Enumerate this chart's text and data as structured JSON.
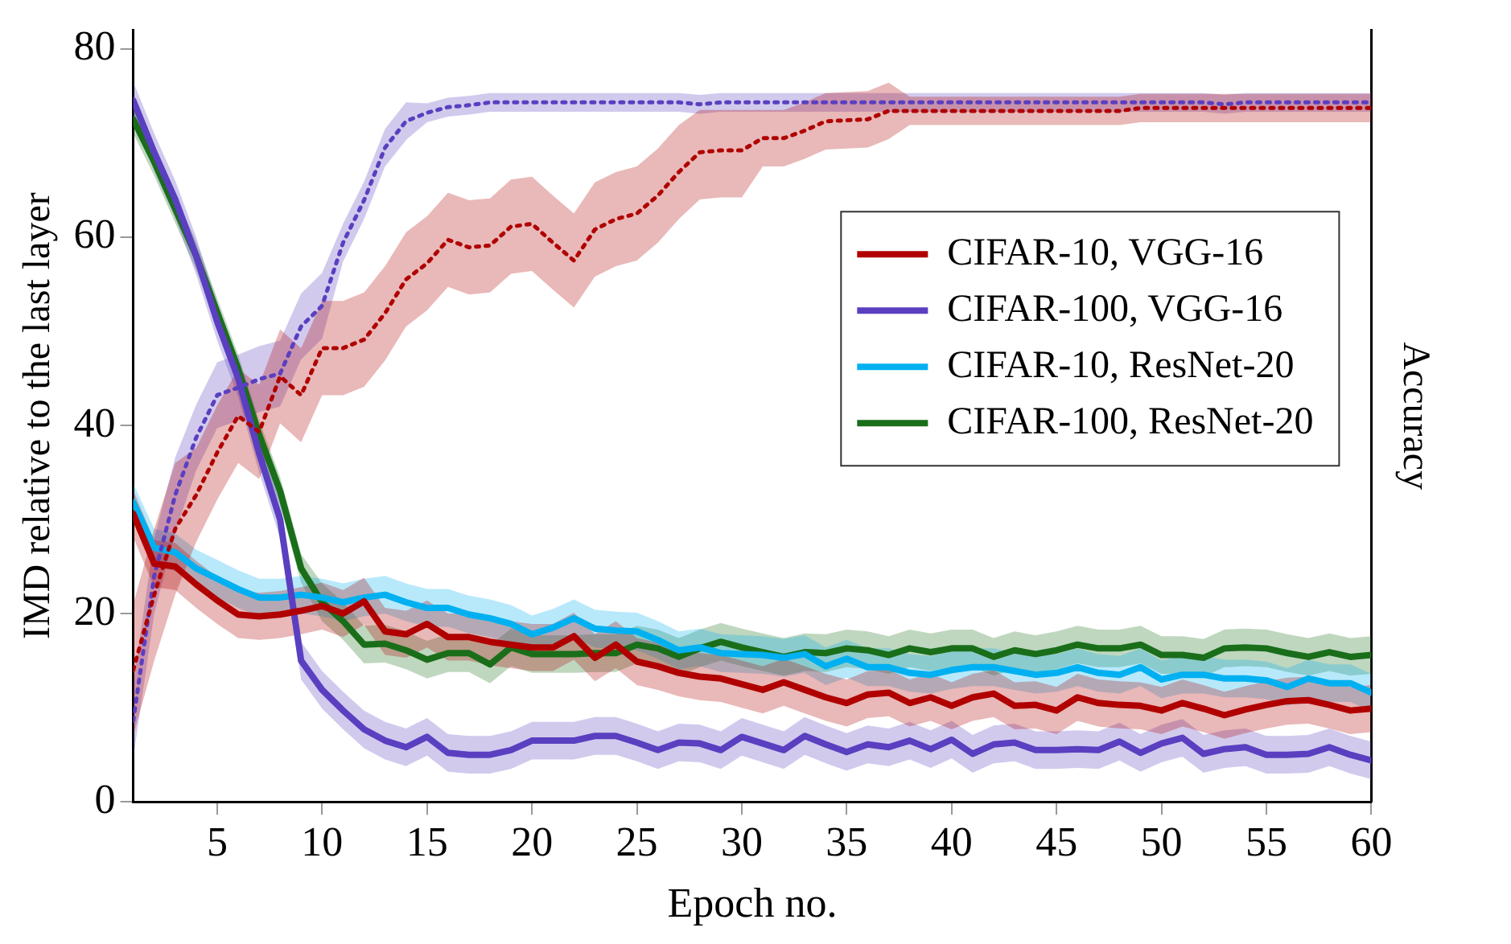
{
  "chart_data": {
    "type": "line",
    "xlabel": "Epoch no.",
    "ylabel": "IMD relative to the last layer",
    "y2label": "Accuracy",
    "xlim": [
      1,
      60
    ],
    "xticks": [
      5,
      10,
      15,
      20,
      25,
      30,
      35,
      40,
      45,
      50,
      55,
      60
    ],
    "ylim": [
      0,
      82
    ],
    "yticks": [
      0,
      20,
      40,
      60,
      80
    ],
    "grid": false,
    "legend": "right",
    "marker": "none",
    "x": [
      1,
      2,
      3,
      4,
      5,
      6,
      7,
      8,
      9,
      10,
      11,
      12,
      13,
      14,
      15,
      16,
      17,
      18,
      19,
      20,
      21,
      22,
      23,
      24,
      25,
      26,
      27,
      28,
      29,
      30,
      31,
      32,
      33,
      34,
      35,
      36,
      37,
      38,
      39,
      40,
      41,
      42,
      43,
      44,
      45,
      46,
      47,
      48,
      49,
      50,
      51,
      52,
      53,
      54,
      55,
      56,
      57,
      58,
      59,
      60
    ],
    "series": [
      {
        "name": "CIFAR-10, VGG-16",
        "color": "#b00000",
        "line_style": "solid",
        "values": [
          30.6,
          25.3,
          25.0,
          23.1,
          21.4,
          19.9,
          19.7,
          19.9,
          20.3,
          20.8,
          20.0,
          21.3,
          18.1,
          17.8,
          18.9,
          17.5,
          17.5,
          17.0,
          16.7,
          16.4,
          16.4,
          17.6,
          15.3,
          16.7,
          14.9,
          14.4,
          13.7,
          13.3,
          13.1,
          12.5,
          11.9,
          12.7,
          11.9,
          11.1,
          10.5,
          11.4,
          11.6,
          10.5,
          11.1,
          10.2,
          11.1,
          11.5,
          10.2,
          10.3,
          9.7,
          11.1,
          10.5,
          10.3,
          10.2,
          9.7,
          10.5,
          9.9,
          9.2,
          9.8,
          10.3,
          10.7,
          10.8,
          10.3,
          9.7,
          9.9
        ],
        "lower": [
          28.1,
          22.8,
          22.5,
          20.6,
          18.9,
          17.4,
          17.2,
          17.4,
          17.8,
          18.3,
          17.5,
          18.8,
          15.6,
          15.3,
          16.4,
          15.0,
          15.0,
          14.5,
          14.2,
          13.9,
          13.9,
          15.1,
          12.8,
          14.2,
          12.4,
          11.9,
          11.2,
          10.8,
          10.6,
          10.0,
          9.4,
          10.2,
          9.4,
          8.6,
          8.0,
          8.9,
          9.1,
          8.0,
          8.6,
          7.7,
          8.6,
          9.0,
          7.7,
          7.8,
          7.2,
          8.6,
          8.0,
          7.8,
          7.7,
          7.2,
          8.0,
          7.4,
          6.7,
          7.3,
          7.8,
          8.2,
          8.3,
          7.8,
          7.2,
          7.4
        ],
        "upper": [
          33.1,
          27.8,
          27.5,
          25.6,
          23.9,
          22.4,
          22.2,
          22.4,
          22.8,
          23.3,
          22.5,
          23.8,
          20.6,
          20.3,
          21.4,
          20.0,
          20.0,
          19.5,
          19.2,
          18.9,
          18.9,
          20.1,
          17.8,
          19.2,
          17.4,
          16.9,
          16.2,
          15.8,
          15.6,
          15.0,
          14.4,
          15.2,
          14.4,
          13.6,
          13.0,
          13.9,
          14.1,
          13.0,
          13.6,
          12.7,
          13.6,
          14.0,
          12.7,
          12.8,
          12.2,
          13.6,
          13.0,
          12.8,
          12.7,
          12.2,
          13.0,
          12.4,
          11.7,
          12.3,
          12.8,
          13.2,
          13.3,
          12.8,
          12.2,
          12.4
        ]
      },
      {
        "color": "#b00000",
        "line_style": "dotted",
        "values": [
          14,
          22,
          29,
          32.6,
          37.1,
          41.0,
          39.3,
          45.2,
          43.2,
          48.2,
          48.2,
          49.1,
          51.9,
          55.5,
          57.2,
          59.7,
          58.9,
          59.1,
          61.1,
          61.4,
          59.4,
          57.5,
          60.8,
          61.9,
          62.5,
          64.4,
          66.9,
          69.0,
          69.2,
          69.2,
          70.5,
          70.5,
          71.3,
          72.3,
          72.4,
          72.5,
          73.4,
          73.4,
          73.4,
          73.4,
          73.4,
          73.4,
          73.4,
          73.4,
          73.4,
          73.4,
          73.4,
          73.4,
          73.7,
          73.7,
          73.7,
          73.7,
          73.7,
          73.7,
          73.7,
          73.7,
          73.7,
          73.7,
          73.7,
          73.7
        ],
        "lower": [
          7,
          15,
          22,
          27.6,
          32.1,
          36.0,
          34.3,
          40.2,
          38.2,
          43.2,
          43.2,
          44.1,
          46.9,
          50.5,
          52.2,
          54.7,
          53.9,
          54.1,
          56.1,
          56.4,
          54.4,
          52.5,
          55.8,
          56.9,
          57.5,
          59.4,
          61.9,
          64.0,
          64.2,
          64.2,
          67.5,
          67.5,
          68.3,
          69.3,
          69.4,
          69.5,
          70.4,
          71.9,
          71.9,
          71.9,
          71.9,
          71.9,
          71.9,
          71.9,
          71.9,
          71.9,
          71.9,
          71.9,
          72.2,
          72.2,
          72.2,
          72.2,
          72.2,
          72.2,
          72.2,
          72.2,
          72.2,
          72.2,
          72.2,
          72.2
        ],
        "upper": [
          21,
          29,
          36,
          37.6,
          42.1,
          46.0,
          44.3,
          50.2,
          48.2,
          53.2,
          53.2,
          54.1,
          56.9,
          60.5,
          62.2,
          64.7,
          63.9,
          64.1,
          66.1,
          66.4,
          64.4,
          62.5,
          65.8,
          66.9,
          67.5,
          69.4,
          71.9,
          73.5,
          73.5,
          73.5,
          73.5,
          73.5,
          74.3,
          75.3,
          75.4,
          75.5,
          76.4,
          74.9,
          74.9,
          74.9,
          74.9,
          74.9,
          74.9,
          74.9,
          74.9,
          74.9,
          74.9,
          74.9,
          75.2,
          75.2,
          75.2,
          75.2,
          75.2,
          75.2,
          75.2,
          75.2,
          75.2,
          75.2,
          75.2,
          75.2
        ]
      },
      {
        "name": "CIFAR-100, VGG-16",
        "color": "#5a3fc0",
        "line_style": "solid",
        "values": [
          74.5,
          69,
          64,
          58,
          51,
          45,
          37,
          30,
          15,
          11.9,
          9.7,
          7.7,
          6.5,
          5.8,
          6.9,
          5.2,
          5.0,
          5.0,
          5.5,
          6.5,
          6.5,
          6.5,
          7.0,
          7.0,
          6.3,
          5.5,
          6.3,
          6.2,
          5.5,
          6.9,
          6.2,
          5.5,
          7.0,
          6.1,
          5.3,
          6.1,
          5.8,
          6.5,
          5.6,
          6.6,
          5.1,
          6.1,
          6.3,
          5.5,
          5.5,
          5.6,
          5.5,
          6.4,
          5.2,
          6.2,
          6.8,
          5.1,
          5.6,
          5.8,
          5.0,
          5.0,
          5.1,
          5.8,
          5.0,
          4.4
        ],
        "lower": [
          72.5,
          67,
          62,
          56,
          49,
          43,
          35,
          28,
          13,
          9.9,
          7.7,
          5.7,
          4.5,
          3.8,
          4.9,
          3.2,
          3.0,
          3.0,
          3.5,
          4.5,
          4.5,
          4.5,
          5.0,
          5.0,
          4.3,
          3.5,
          4.3,
          4.2,
          3.5,
          4.9,
          4.2,
          3.5,
          5.0,
          4.1,
          3.3,
          4.1,
          3.8,
          4.5,
          3.6,
          4.6,
          3.1,
          4.1,
          4.3,
          3.5,
          3.5,
          3.6,
          3.5,
          4.4,
          3.2,
          4.2,
          4.8,
          3.1,
          3.6,
          3.8,
          3.0,
          3.0,
          3.1,
          3.8,
          3.0,
          2.4
        ],
        "upper": [
          76.5,
          71,
          66,
          60,
          53,
          47,
          39,
          32,
          17,
          13.9,
          11.7,
          9.7,
          8.5,
          7.8,
          8.9,
          7.2,
          7.0,
          7.0,
          7.5,
          8.5,
          8.5,
          8.5,
          9.0,
          9.0,
          8.3,
          7.5,
          8.3,
          8.2,
          7.5,
          8.9,
          8.2,
          7.5,
          9.0,
          8.1,
          7.3,
          8.1,
          7.8,
          8.5,
          7.6,
          8.6,
          7.1,
          8.1,
          8.3,
          7.5,
          7.5,
          7.6,
          7.5,
          8.4,
          7.2,
          8.2,
          8.8,
          7.1,
          7.6,
          7.8,
          7.0,
          7.0,
          7.1,
          7.8,
          7.0,
          6.4
        ]
      },
      {
        "color": "#5a3fc0",
        "line_style": "dotted",
        "values": [
          8.6,
          24,
          32.6,
          38.7,
          43.2,
          44.0,
          44.9,
          45.5,
          50.5,
          52.7,
          59.4,
          63.9,
          69.5,
          72.3,
          73.2,
          73.8,
          74.0,
          74.3,
          74.3,
          74.3,
          74.3,
          74.3,
          74.3,
          74.3,
          74.3,
          74.3,
          74.3,
          74.1,
          74.3,
          74.3,
          74.3,
          74.3,
          74.3,
          74.3,
          74.3,
          74.3,
          74.3,
          74.3,
          74.3,
          74.3,
          74.3,
          74.3,
          74.3,
          74.3,
          74.3,
          74.3,
          74.3,
          74.3,
          74.3,
          74.3,
          74.3,
          74.3,
          74.1,
          74.3,
          74.3,
          74.3,
          74.3,
          74.3,
          74.3,
          74.3
        ],
        "lower": [
          4.6,
          20,
          28.6,
          35.2,
          39.7,
          40.5,
          41.4,
          42.0,
          47.0,
          49.2,
          57.4,
          61.9,
          67.5,
          70.3,
          72.2,
          72.8,
          73.0,
          73.3,
          73.3,
          73.3,
          73.3,
          73.3,
          73.3,
          73.3,
          73.3,
          73.3,
          73.3,
          73.1,
          73.3,
          73.3,
          73.3,
          73.3,
          73.3,
          73.3,
          73.3,
          73.3,
          73.3,
          73.3,
          73.3,
          73.3,
          73.3,
          73.3,
          73.3,
          73.3,
          73.3,
          73.3,
          73.3,
          73.3,
          73.3,
          73.3,
          73.3,
          73.3,
          73.1,
          73.3,
          73.3,
          73.3,
          73.3,
          73.3,
          73.3,
          73.3
        ],
        "upper": [
          12.6,
          28,
          36.6,
          42.2,
          46.7,
          47.5,
          48.4,
          49.0,
          54.0,
          56.2,
          61.4,
          65.9,
          71.5,
          74.3,
          74.2,
          74.8,
          75.0,
          75.3,
          75.3,
          75.3,
          75.3,
          75.3,
          75.3,
          75.3,
          75.3,
          75.3,
          75.3,
          75.1,
          75.3,
          75.3,
          75.3,
          75.3,
          75.3,
          75.3,
          75.3,
          75.3,
          75.3,
          75.3,
          75.3,
          75.3,
          75.3,
          75.3,
          75.3,
          75.3,
          75.3,
          75.3,
          75.3,
          75.3,
          75.3,
          75.3,
          75.3,
          75.3,
          75.1,
          75.3,
          75.3,
          75.3,
          75.3,
          75.3,
          75.3,
          75.3
        ]
      },
      {
        "name": "CIFAR-10, ResNet-20",
        "color": "#00b0f0",
        "line_style": "solid",
        "values": [
          31.8,
          27.0,
          26.5,
          24.8,
          23.7,
          22.6,
          21.7,
          21.7,
          22.0,
          21.7,
          21.2,
          21.7,
          22.0,
          21.2,
          20.6,
          20.6,
          19.9,
          19.5,
          18.9,
          17.8,
          18.5,
          19.5,
          18.4,
          18.2,
          18.1,
          17.2,
          16.1,
          16.4,
          15.8,
          15.7,
          15.6,
          15.3,
          15.7,
          14.4,
          15.2,
          14.3,
          14.3,
          13.7,
          13.5,
          14.0,
          14.3,
          14.3,
          13.9,
          13.5,
          13.7,
          14.3,
          13.7,
          13.5,
          14.3,
          13.0,
          13.5,
          13.5,
          13.1,
          13.1,
          12.9,
          12.2,
          13.1,
          12.6,
          12.6,
          11.6
        ],
        "lower": [
          29.8,
          25.0,
          24.5,
          22.8,
          21.7,
          20.6,
          19.7,
          19.7,
          20.0,
          19.7,
          19.2,
          19.7,
          20.0,
          19.2,
          18.6,
          18.6,
          17.9,
          17.5,
          16.9,
          15.8,
          16.5,
          17.5,
          16.4,
          16.2,
          16.1,
          15.2,
          14.1,
          14.4,
          13.8,
          13.7,
          13.6,
          13.3,
          13.7,
          12.4,
          13.2,
          12.3,
          12.3,
          11.7,
          11.5,
          12.0,
          12.3,
          12.3,
          11.9,
          11.5,
          11.7,
          12.3,
          11.7,
          11.5,
          12.3,
          11.0,
          11.5,
          11.5,
          11.1,
          11.1,
          10.9,
          10.2,
          11.1,
          10.6,
          10.6,
          9.6
        ],
        "upper": [
          33.8,
          29.0,
          28.5,
          26.8,
          25.7,
          24.6,
          23.7,
          23.7,
          24.0,
          23.7,
          23.2,
          23.7,
          24.0,
          23.2,
          22.6,
          22.6,
          21.9,
          21.5,
          20.9,
          19.8,
          20.5,
          21.5,
          20.4,
          20.2,
          20.1,
          19.2,
          18.1,
          18.4,
          17.8,
          17.7,
          17.6,
          17.3,
          17.7,
          16.4,
          17.2,
          16.3,
          16.3,
          15.7,
          15.5,
          16.0,
          16.3,
          16.3,
          15.9,
          15.5,
          15.7,
          16.3,
          15.7,
          15.5,
          16.3,
          15.0,
          15.5,
          15.5,
          15.1,
          15.1,
          14.9,
          14.2,
          15.1,
          14.6,
          14.6,
          13.6
        ]
      },
      {
        "name": "CIFAR-100, ResNet-20",
        "color": "#1a6e1a",
        "line_style": "solid",
        "values": [
          72.5,
          68,
          63,
          58,
          52,
          46,
          39,
          33,
          24.8,
          21.2,
          19.2,
          16.7,
          16.8,
          16.1,
          15.1,
          15.8,
          15.8,
          14.6,
          16.4,
          15.7,
          15.7,
          15.7,
          15.8,
          15.8,
          16.7,
          16.3,
          15.4,
          16.3,
          17.0,
          16.4,
          15.9,
          15.4,
          15.9,
          15.8,
          16.3,
          16.1,
          15.6,
          16.3,
          15.9,
          16.3,
          16.3,
          15.4,
          16.1,
          15.7,
          16.1,
          16.7,
          16.3,
          16.3,
          16.7,
          15.6,
          15.6,
          15.3,
          16.3,
          16.4,
          16.3,
          15.8,
          15.4,
          15.9,
          15.4,
          15.6
        ],
        "lower": [
          71,
          66.5,
          61.5,
          56.5,
          50.5,
          44.5,
          37.5,
          31.5,
          23.3,
          19.2,
          17.2,
          14.7,
          14.8,
          14.1,
          13.1,
          13.8,
          13.8,
          12.6,
          14.4,
          13.7,
          13.7,
          13.7,
          13.8,
          13.8,
          14.7,
          14.3,
          13.4,
          14.3,
          15.0,
          14.4,
          13.9,
          13.4,
          13.9,
          13.8,
          14.3,
          14.1,
          13.6,
          14.3,
          13.9,
          14.3,
          14.3,
          13.4,
          14.1,
          13.7,
          14.1,
          14.7,
          14.3,
          14.3,
          14.7,
          13.6,
          13.6,
          13.3,
          14.3,
          14.4,
          14.3,
          13.8,
          13.4,
          13.9,
          13.4,
          13.6
        ],
        "upper": [
          74,
          69.5,
          64.5,
          59.5,
          53.5,
          47.5,
          40.5,
          34.5,
          26.3,
          23.2,
          21.2,
          18.7,
          18.8,
          18.1,
          17.1,
          17.8,
          17.8,
          16.6,
          18.4,
          17.7,
          17.7,
          17.7,
          17.8,
          17.8,
          18.7,
          18.3,
          17.4,
          18.3,
          19.0,
          18.4,
          17.9,
          17.4,
          17.9,
          17.8,
          18.3,
          18.1,
          17.6,
          18.3,
          17.9,
          18.3,
          18.3,
          17.4,
          18.1,
          17.7,
          18.1,
          18.7,
          18.3,
          18.3,
          18.7,
          17.6,
          17.6,
          17.3,
          18.3,
          18.4,
          18.3,
          17.8,
          17.4,
          17.9,
          17.4,
          17.6
        ]
      }
    ]
  }
}
